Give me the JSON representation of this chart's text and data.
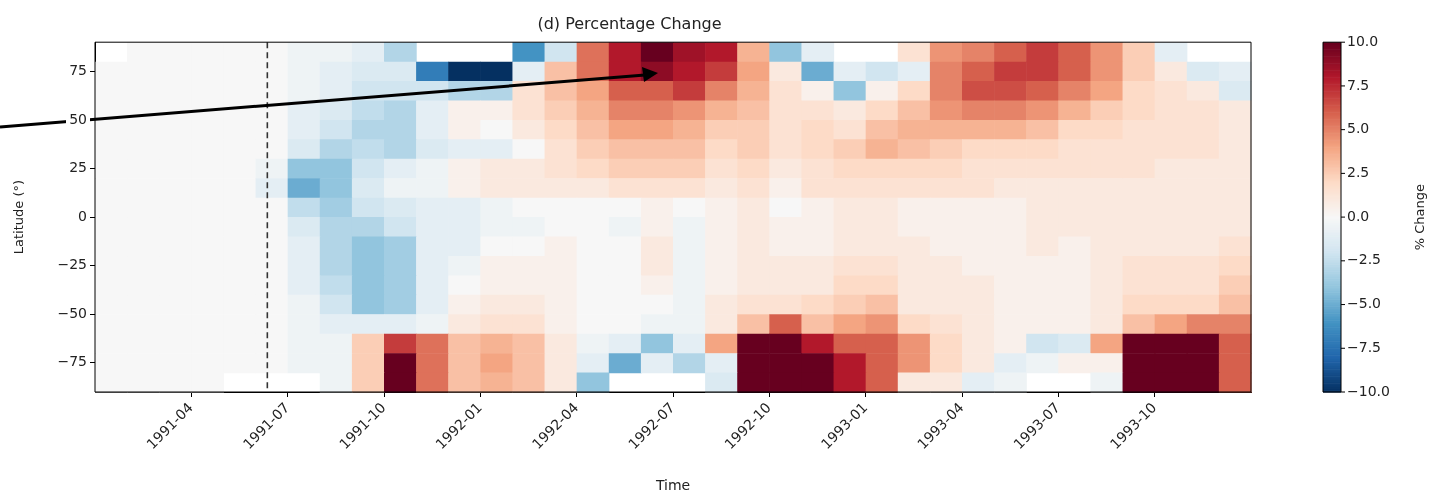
{
  "chart_data": {
    "type": "heatmap",
    "title": "(d) Percentage Change",
    "xlabel": "Time",
    "ylabel": "Latitude (°)",
    "clabel": "% Change",
    "x": [
      "1991-01-16",
      "1991-02-16",
      "1991-03-16",
      "1991-04-16",
      "1991-05-16",
      "1991-06-16",
      "1991-07-16",
      "1991-08-16",
      "1991-09-16",
      "1991-10-16",
      "1991-11-16",
      "1991-12-16",
      "1992-01-16",
      "1992-02-16",
      "1992-03-16",
      "1992-04-16",
      "1992-05-16",
      "1992-06-16",
      "1992-07-16",
      "1992-08-16",
      "1992-09-16",
      "1992-10-16",
      "1992-11-16",
      "1992-12-16",
      "1993-01-16",
      "1993-02-16",
      "1993-03-16",
      "1993-04-16",
      "1993-05-16",
      "1993-06-16",
      "1993-07-16",
      "1993-08-16",
      "1993-09-16",
      "1993-10-16",
      "1993-11-16",
      "1993-12-16"
    ],
    "xlim": [
      "1991-01",
      "1994-01"
    ],
    "xticks": [
      "1991-04",
      "1991-07",
      "1991-10",
      "1992-01",
      "1992-04",
      "1992-07",
      "1992-10",
      "1993-01",
      "1993-04",
      "1993-07",
      "1993-10"
    ],
    "ylim": [
      -90,
      90
    ],
    "yticks": [
      {
        "value": 75,
        "label": "75"
      },
      {
        "value": 50,
        "label": "50"
      },
      {
        "value": 25,
        "label": "25"
      },
      {
        "value": 0,
        "label": "0"
      },
      {
        "value": -25,
        "label": "−25"
      },
      {
        "value": -50,
        "label": "−50"
      },
      {
        "value": -75,
        "label": "−75"
      }
    ],
    "cells": [
      [
        null,
        0,
        0,
        0,
        0,
        0,
        -0.5,
        -0.5,
        -1,
        -3,
        null,
        null,
        null,
        -6,
        -2,
        5.5,
        8,
        10,
        8.5,
        8,
        3.5,
        -4,
        -1,
        null,
        null,
        1.5,
        4.5,
        5,
        6,
        7,
        6,
        4.5,
        2.5,
        -1,
        null,
        null
      ],
      [
        0,
        0,
        0,
        0,
        0,
        0,
        -0.5,
        -1,
        -1.5,
        -1.5,
        -7,
        -10,
        -10,
        -1,
        3,
        5.5,
        8,
        9,
        8,
        7,
        4,
        1,
        -5,
        -1,
        -2,
        -1,
        5,
        6,
        7,
        7,
        6,
        4.5,
        2.5,
        1,
        -1.5,
        -1
      ],
      [
        0,
        0,
        0,
        0,
        0,
        0,
        -0.5,
        -1,
        -2,
        -2,
        -2,
        -3,
        -3,
        1.5,
        3,
        4,
        6,
        6,
        7,
        5,
        3.5,
        1.5,
        0.5,
        -4,
        0.5,
        2,
        5,
        6.5,
        6.5,
        6,
        5,
        4,
        2,
        1.5,
        1,
        -1.5
      ],
      [
        0,
        0,
        0,
        0,
        0,
        0,
        -1,
        -1.5,
        -2.5,
        -3,
        -1,
        0.5,
        0.5,
        1.5,
        2.5,
        3.5,
        5,
        5,
        4.5,
        3.5,
        3,
        1.5,
        1.5,
        1,
        2,
        3,
        4.5,
        5,
        5,
        4.5,
        3.5,
        2.5,
        2,
        1.5,
        1.5,
        1
      ],
      [
        0,
        0,
        0,
        0,
        0,
        0,
        -1,
        -2,
        -3,
        -3,
        -1,
        0.5,
        0,
        1,
        2,
        3,
        4,
        4,
        3.5,
        2.5,
        2.5,
        1.5,
        2,
        1.5,
        3,
        3.5,
        3.5,
        3.5,
        3.5,
        3,
        2,
        2,
        1.5,
        1.5,
        1.5,
        1
      ],
      [
        0,
        0,
        0,
        0,
        0,
        0,
        -1.5,
        -3,
        -2.5,
        -3,
        -1.5,
        -1,
        -1,
        0,
        1.5,
        2.5,
        3,
        3,
        3,
        2,
        2.5,
        1.5,
        2,
        2.5,
        3.5,
        3,
        2.5,
        2,
        2,
        2,
        1.5,
        1.5,
        1.5,
        1.5,
        1.5,
        1
      ],
      [
        0,
        0,
        0,
        0,
        0,
        -0.5,
        -4,
        -4,
        -2,
        -1,
        -0.5,
        0.5,
        1,
        1,
        1.5,
        2,
        2.5,
        2.5,
        2.5,
        1.5,
        2,
        1,
        1.5,
        2,
        2,
        2,
        2,
        1.5,
        1.5,
        1.5,
        1.5,
        1.5,
        1.5,
        1,
        1,
        1
      ],
      [
        0,
        0,
        0,
        0,
        0,
        -1,
        -5,
        -4,
        -1.5,
        -0.5,
        -0.5,
        0.5,
        1,
        1,
        1,
        1,
        1.5,
        1.5,
        1.5,
        1,
        1.5,
        0.5,
        1.5,
        1.5,
        1.5,
        1.5,
        1.5,
        1.5,
        1,
        1,
        1,
        1,
        1,
        1,
        1,
        1
      ],
      [
        0,
        0,
        0,
        0,
        0,
        0,
        -2.5,
        -3.5,
        -2,
        -1.5,
        -1,
        -1,
        -0.5,
        0,
        0,
        0,
        0,
        0.5,
        0,
        0.5,
        1,
        0,
        0.5,
        1,
        1,
        0.5,
        0.5,
        0.5,
        0.5,
        1,
        1,
        1,
        1,
        1,
        1,
        1
      ],
      [
        0,
        0,
        0,
        0,
        0,
        0,
        -1.5,
        -3,
        -3,
        -2,
        -1,
        -1,
        -0.5,
        -0.5,
        0,
        0,
        -0.5,
        0.5,
        -0.5,
        0.5,
        1,
        0.5,
        0.5,
        1,
        1,
        0.5,
        0.5,
        0.5,
        0.5,
        1,
        1,
        1,
        1,
        1,
        1,
        1
      ],
      [
        0,
        0,
        0,
        0,
        0,
        0,
        -1,
        -3,
        -4,
        -3.5,
        -1,
        -1,
        0,
        0,
        0.5,
        0,
        0,
        1,
        -0.5,
        0.5,
        1,
        0.5,
        0.5,
        1,
        1,
        1,
        0.5,
        0.5,
        0.5,
        1,
        0.5,
        1,
        1,
        1,
        1,
        1.5
      ],
      [
        0,
        0,
        0,
        0,
        0,
        0,
        -1,
        -3,
        -4,
        -3.5,
        -1,
        -0.5,
        0.5,
        0.5,
        0.5,
        0,
        0,
        1,
        -0.5,
        0.5,
        1,
        1,
        1,
        1.5,
        1.5,
        1,
        1,
        0.5,
        0.5,
        0.5,
        0.5,
        1,
        1.5,
        1.5,
        1.5,
        2
      ],
      [
        0,
        0,
        0,
        0,
        0,
        0,
        -1,
        -2.5,
        -4,
        -3.5,
        -1,
        0,
        0.5,
        0.5,
        0.5,
        0,
        0,
        0.5,
        -0.5,
        0.5,
        1,
        1,
        1,
        2,
        2,
        1,
        1,
        1,
        0.5,
        0.5,
        0.5,
        1,
        1.5,
        1.5,
        1.5,
        2.5
      ],
      [
        0,
        0,
        0,
        0,
        0,
        0,
        -0.5,
        -2,
        -4,
        -3.5,
        -1,
        0.5,
        1,
        1,
        0.5,
        0,
        0,
        0,
        -0.5,
        1,
        1.5,
        1.5,
        2,
        2.5,
        3,
        1,
        1,
        1,
        0.5,
        0.5,
        0.5,
        1,
        2,
        2,
        2,
        3
      ],
      [
        0,
        0,
        0,
        0,
        0,
        0,
        -0.5,
        -1,
        -1,
        -1,
        -0.5,
        1,
        1.5,
        1.5,
        0.5,
        0,
        0,
        -0.5,
        -0.5,
        1,
        3,
        6,
        3,
        4,
        4.5,
        2,
        1.5,
        1,
        0.5,
        0.5,
        0.5,
        1,
        3,
        4,
        5,
        5
      ],
      [
        0,
        0,
        0,
        0,
        0,
        0,
        -0.5,
        -0.5,
        2.5,
        7,
        5.5,
        3,
        3.5,
        3,
        1,
        -0.5,
        -1,
        -4,
        -1,
        4,
        10,
        10,
        8,
        6,
        6,
        4.5,
        2,
        1,
        0.5,
        -2,
        -1.5,
        4,
        10,
        10,
        10,
        6
      ],
      [
        0,
        0,
        0,
        0,
        0,
        0,
        -0.5,
        -0.5,
        2.5,
        10,
        5.5,
        3,
        4,
        3,
        1,
        -1,
        -5,
        -1,
        -3,
        -1,
        10,
        10,
        10,
        8,
        6,
        4.5,
        2,
        1,
        -1,
        -0.5,
        0.5,
        0.5,
        10,
        10,
        10,
        6
      ],
      [
        0,
        0,
        0,
        0,
        null,
        null,
        null,
        -0.5,
        2.5,
        10,
        5.5,
        3,
        3.5,
        3,
        1,
        -4,
        null,
        null,
        null,
        -1.5,
        10,
        10,
        10,
        8,
        6,
        1,
        1,
        -1,
        -0.5,
        null,
        null,
        -0.5,
        10,
        10,
        10,
        6
      ]
    ],
    "clim": [
      -10,
      10
    ],
    "cticks": [
      {
        "value": 10,
        "label": "10.0"
      },
      {
        "value": 7.5,
        "label": "7.5"
      },
      {
        "value": 5,
        "label": "5.0"
      },
      {
        "value": 2.5,
        "label": "2.5"
      },
      {
        "value": 0,
        "label": "0.0"
      },
      {
        "value": -2.5,
        "label": "−2.5"
      },
      {
        "value": -5,
        "label": "−5.0"
      },
      {
        "value": -7.5,
        "label": "−7.5"
      },
      {
        "value": -10,
        "label": "−10.0"
      }
    ],
    "ref_lines": [
      {
        "axis": "x",
        "value": "1991-06-12",
        "color": "#333333",
        "line_style": "dashed"
      }
    ],
    "grid": false,
    "legend": false
  }
}
